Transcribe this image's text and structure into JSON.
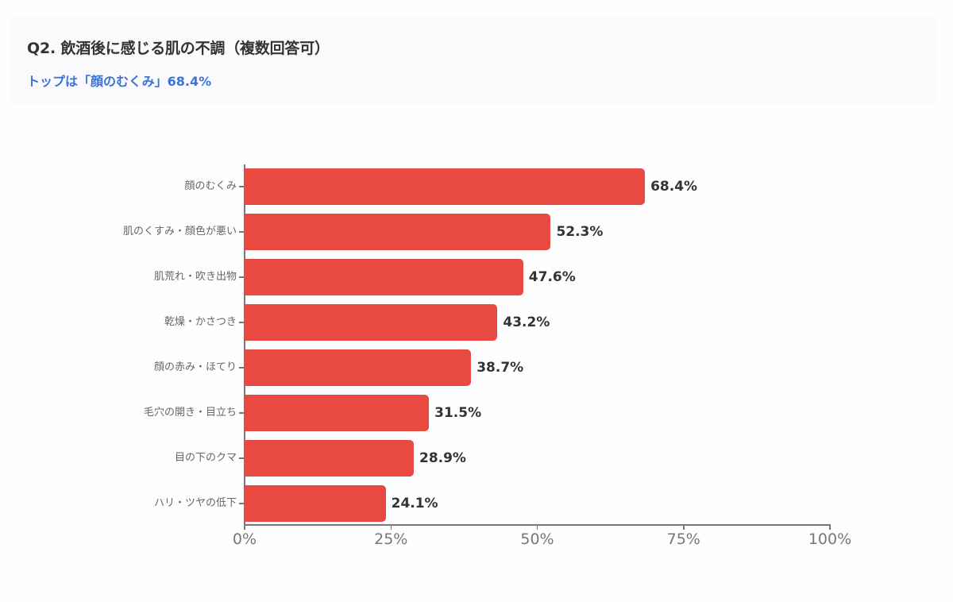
{
  "header": {
    "title": "Q2. 飲酒後に感じる肌の不調（複数回答可）",
    "subtitle": "トップは「顔のむくみ」68.4%"
  },
  "colors": {
    "bar": "#e84a42",
    "subtitle": "#3b73d9",
    "title": "#333333",
    "axis": "#777777",
    "card_bg": "#faf9fc"
  },
  "chart_data": {
    "type": "bar",
    "orientation": "horizontal",
    "title": "Q2. 飲酒後に感じる肌の不調（複数回答可）",
    "subtitle": "トップは「顔のむくみ」68.4%",
    "categories": [
      "顔のむくみ",
      "肌のくすみ・顔色が悪い",
      "肌荒れ・吹き出物",
      "乾燥・かさつき",
      "顔の赤み・ほてり",
      "毛穴の開き・目立ち",
      "目の下のクマ",
      "ハリ・ツヤの低下"
    ],
    "values": [
      68.4,
      52.3,
      47.6,
      43.2,
      38.7,
      31.5,
      28.9,
      24.1
    ],
    "value_labels": [
      "68.4%",
      "52.3%",
      "47.6%",
      "43.2%",
      "38.7%",
      "31.5%",
      "28.9%",
      "24.1%"
    ],
    "xlabel": "",
    "ylabel": "",
    "xlim": [
      0,
      100
    ],
    "x_ticks": [
      "0%",
      "25%",
      "50%",
      "75%",
      "100%"
    ],
    "grid": false,
    "legend": null
  }
}
